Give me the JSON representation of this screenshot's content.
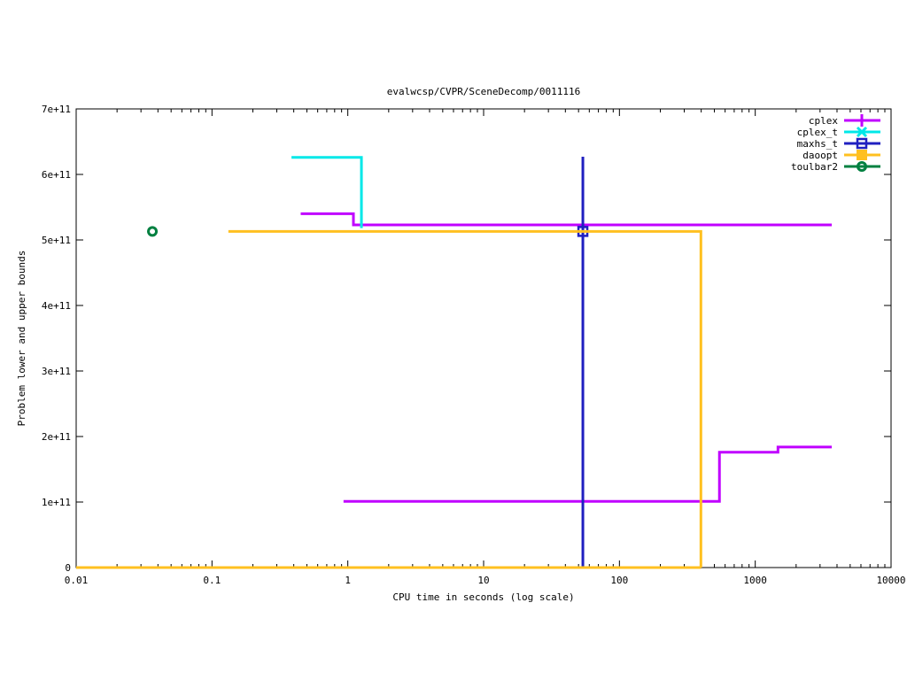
{
  "chart_data": {
    "type": "line",
    "title": "evalwcsp/CVPR/SceneDecomp/0011116",
    "xlabel": "CPU time in seconds (log scale)",
    "ylabel": "Problem lower and upper bounds",
    "xscale": "log",
    "xlim": [
      0.01,
      10000
    ],
    "ylim": [
      0,
      700000000000.0
    ],
    "xticks": [
      {
        "v": 0.01,
        "l": "0.01"
      },
      {
        "v": 0.1,
        "l": "0.1"
      },
      {
        "v": 1,
        "l": "1"
      },
      {
        "v": 10,
        "l": "10"
      },
      {
        "v": 100,
        "l": "100"
      },
      {
        "v": 1000,
        "l": "1000"
      },
      {
        "v": 10000,
        "l": "10000"
      }
    ],
    "yticks": [
      {
        "v": 0,
        "l": "0"
      },
      {
        "v": 100000000000.0,
        "l": "1e+11"
      },
      {
        "v": 200000000000.0,
        "l": "2e+11"
      },
      {
        "v": 300000000000.0,
        "l": "3e+11"
      },
      {
        "v": 400000000000.0,
        "l": "4e+11"
      },
      {
        "v": 500000000000.0,
        "l": "5e+11"
      },
      {
        "v": 600000000000.0,
        "l": "6e+11"
      },
      {
        "v": 700000000000.0,
        "l": "7e+11"
      }
    ],
    "grid": false,
    "legend_position": "top-right",
    "series": [
      {
        "name": "cplex",
        "color": "#c000ff",
        "marker": "plus",
        "lines": [
          [
            [
              0.45,
              540000000000.0
            ],
            [
              1.1,
              540000000000.0
            ],
            [
              1.1,
              523000000000.0
            ],
            [
              3660,
              523000000000.0
            ]
          ],
          [
            [
              0.93,
              101000000000.0
            ],
            [
              545,
              101000000000.0
            ],
            [
              545,
              176000000000.0
            ],
            [
              1470,
              176000000000.0
            ],
            [
              1470,
              184000000000.0
            ],
            [
              3660,
              184000000000.0
            ]
          ]
        ]
      },
      {
        "name": "cplex_t",
        "color": "#00e8e8",
        "marker": "x",
        "lines": [
          [
            [
              0.385,
              626000000000.0
            ],
            [
              1.26,
              626000000000.0
            ],
            [
              1.26,
              518000000000.0
            ]
          ]
        ]
      },
      {
        "name": "maxhs_t",
        "color": "#2020c0",
        "marker": "box",
        "lines": [
          [
            [
              53.8,
              0
            ],
            [
              53.8,
              627000000000.0
            ]
          ]
        ],
        "points": [
          [
            53.8,
            513000000000.0
          ]
        ]
      },
      {
        "name": "daoopt",
        "color": "#ffc020",
        "marker": "filled-box",
        "lines": [
          [
            [
              0.132,
              513000000000.0
            ],
            [
              398,
              513000000000.0
            ],
            [
              398,
              0
            ]
          ],
          [
            [
              0.01,
              0
            ],
            [
              398,
              0
            ]
          ]
        ]
      },
      {
        "name": "toulbar2",
        "color": "#008040",
        "marker": "circle",
        "lines": [],
        "points": [
          [
            0.0364,
            513000000000.0
          ]
        ]
      }
    ]
  }
}
